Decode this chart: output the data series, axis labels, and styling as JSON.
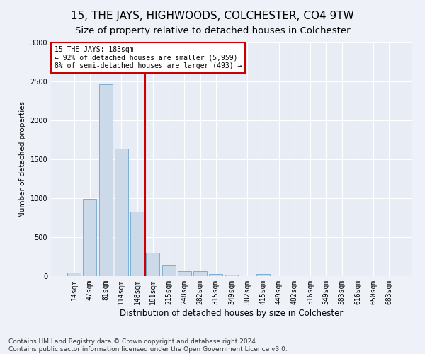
{
  "title": "15, THE JAYS, HIGHWOODS, COLCHESTER, CO4 9TW",
  "subtitle": "Size of property relative to detached houses in Colchester",
  "xlabel": "Distribution of detached houses by size in Colchester",
  "ylabel": "Number of detached properties",
  "bar_labels": [
    "14sqm",
    "47sqm",
    "81sqm",
    "114sqm",
    "148sqm",
    "181sqm",
    "215sqm",
    "248sqm",
    "282sqm",
    "315sqm",
    "349sqm",
    "382sqm",
    "415sqm",
    "449sqm",
    "482sqm",
    "516sqm",
    "549sqm",
    "583sqm",
    "616sqm",
    "650sqm",
    "683sqm"
  ],
  "bar_values": [
    50,
    990,
    2460,
    1640,
    830,
    300,
    140,
    60,
    60,
    30,
    20,
    0,
    30,
    0,
    0,
    0,
    0,
    0,
    0,
    0,
    0
  ],
  "bar_color": "#ccd9e8",
  "bar_edge_color": "#7bafd4",
  "vline_color": "#cc0000",
  "vline_idx": 5,
  "annotation_text": "15 THE JAYS: 183sqm\n← 92% of detached houses are smaller (5,959)\n8% of semi-detached houses are larger (493) →",
  "annotation_box_color": "#cc0000",
  "ylim": [
    0,
    3000
  ],
  "yticks": [
    0,
    500,
    1000,
    1500,
    2000,
    2500,
    3000
  ],
  "footnote": "Contains HM Land Registry data © Crown copyright and database right 2024.\nContains public sector information licensed under the Open Government Licence v3.0.",
  "title_fontsize": 11,
  "subtitle_fontsize": 9.5,
  "xlabel_fontsize": 8.5,
  "ylabel_fontsize": 7.5,
  "tick_fontsize": 7,
  "footnote_fontsize": 6.5,
  "bg_color": "#eef2f8",
  "plot_bg_color": "#e8edf5"
}
